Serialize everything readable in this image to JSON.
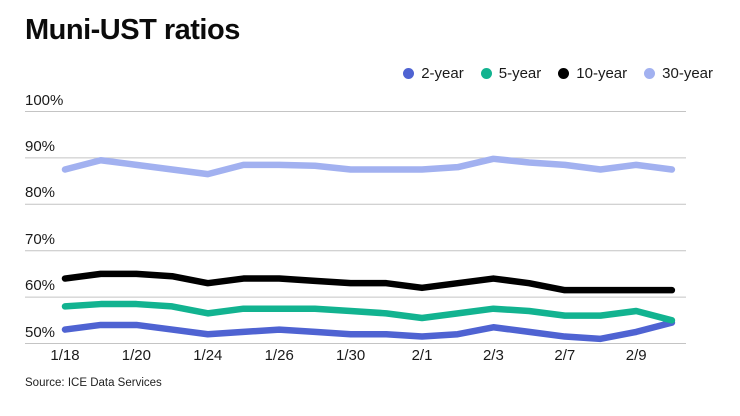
{
  "title": "Muni-UST ratios",
  "source": "Source: ICE Data Services",
  "colors": {
    "two_year": "#4f63d2",
    "five_year": "#12b390",
    "ten_year": "#000000",
    "thirty_year": "#a2b1f0",
    "gridline": "#c4c4c4"
  },
  "legend": [
    {
      "label": "2-year",
      "color": "#4f63d2"
    },
    {
      "label": "5-year",
      "color": "#12b390"
    },
    {
      "label": "10-year",
      "color": "#000000"
    },
    {
      "label": "30-year",
      "color": "#a2b1f0"
    }
  ],
  "chart_data": {
    "type": "line",
    "title": "Muni-UST ratios",
    "xlabel": "",
    "ylabel": "",
    "ylim": [
      50,
      100
    ],
    "grid": "horizontal",
    "legend_position": "top-right",
    "x": [
      "1/18",
      "1/19",
      "1/20",
      "1/23",
      "1/24",
      "1/25",
      "1/26",
      "1/27",
      "1/30",
      "1/31",
      "2/1",
      "2/2",
      "2/3",
      "2/6",
      "2/7",
      "2/8",
      "2/9",
      "2/10"
    ],
    "x_ticks": [
      {
        "label": "1/18",
        "index": 0
      },
      {
        "label": "1/20",
        "index": 2
      },
      {
        "label": "1/24",
        "index": 4
      },
      {
        "label": "1/26",
        "index": 6
      },
      {
        "label": "1/30",
        "index": 8
      },
      {
        "label": "2/1",
        "index": 10
      },
      {
        "label": "2/3",
        "index": 12
      },
      {
        "label": "2/7",
        "index": 14
      },
      {
        "label": "2/9",
        "index": 16
      }
    ],
    "y_ticks": [
      {
        "label": "100%",
        "value": 100
      },
      {
        "label": "90%",
        "value": 90
      },
      {
        "label": "80%",
        "value": 80
      },
      {
        "label": "70%",
        "value": 70
      },
      {
        "label": "60%",
        "value": 60
      },
      {
        "label": "50%",
        "value": 50
      }
    ],
    "series": [
      {
        "name": "2-year",
        "color": "#4f63d2",
        "values": [
          53,
          54,
          54,
          53,
          52,
          52.5,
          53,
          52.5,
          52,
          52,
          51.5,
          52,
          53.5,
          52.5,
          51.5,
          51,
          52.5,
          54.5
        ]
      },
      {
        "name": "5-year",
        "color": "#12b390",
        "values": [
          58,
          58.5,
          58.5,
          58,
          56.5,
          57.5,
          57.5,
          57.5,
          57,
          56.5,
          55.5,
          56.5,
          57.5,
          57,
          56,
          56,
          57,
          55
        ]
      },
      {
        "name": "10-year",
        "color": "#000000",
        "values": [
          64,
          65,
          65,
          64.5,
          63,
          64,
          64,
          63.5,
          63,
          63,
          62,
          63,
          64,
          63,
          61.5,
          61.5,
          61.5,
          61.5
        ]
      },
      {
        "name": "30-year",
        "color": "#a2b1f0",
        "values": [
          87.5,
          89.5,
          88.5,
          87.5,
          86.5,
          88.5,
          88.5,
          88.3,
          87.5,
          87.5,
          87.5,
          88,
          89.8,
          89,
          88.5,
          87.5,
          88.5,
          87.5
        ]
      }
    ]
  }
}
